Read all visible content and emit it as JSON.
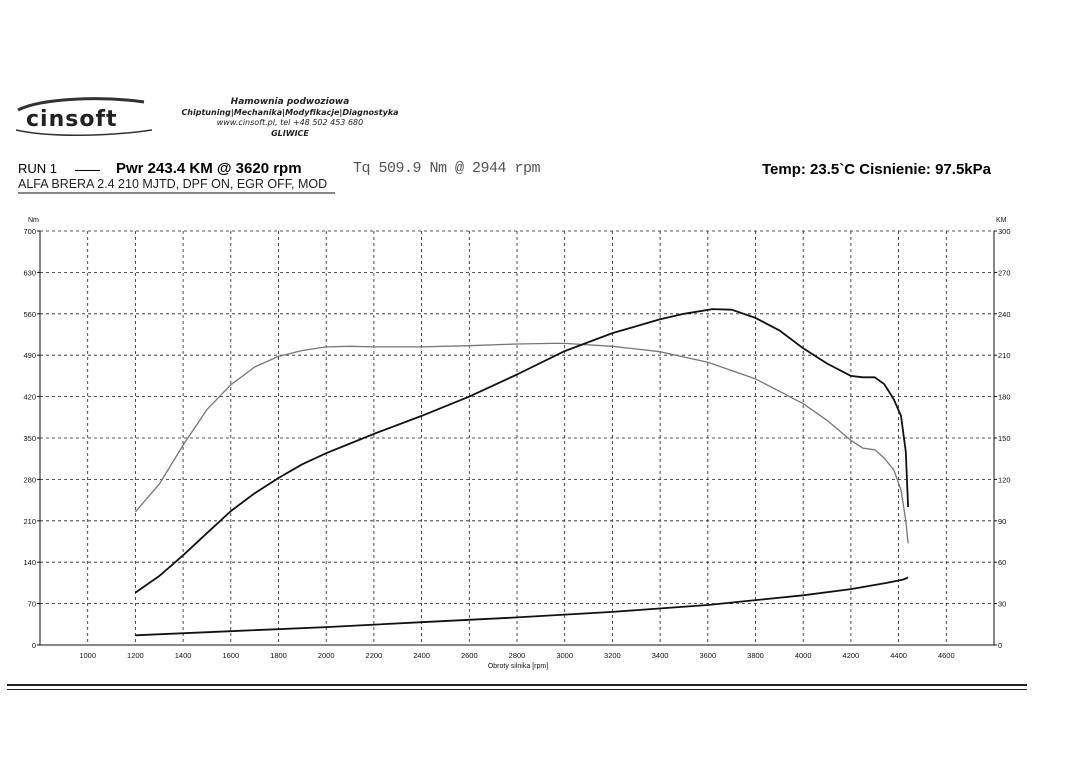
{
  "header": {
    "logo_text": "cinsoft",
    "company_line1": "Hamownia podwoziowa",
    "company_line2": "Chiptuning|Mechanika|Modyfikacje|Diagnostyka",
    "company_line3": "www.cinsoft.pl, tel +48 502 453 680",
    "company_line4": "GLIWICE",
    "run_label": "RUN 1",
    "power_summary": "Pwr  243.4 KM @ 3620 rpm",
    "torque_summary": "Tq 509.9 Nm @ 2944 rpm",
    "conditions": "Temp: 23.5`C  Cisnienie: 97.5kPa",
    "car_description": "ALFA BRERA 2.4 210 MJTD, DPF ON, EGR OFF, MOD"
  },
  "chart_data": {
    "type": "line",
    "xlabel": "Obroty silnika [rpm]",
    "ylabel_left": "Nm",
    "ylabel_right": "KM",
    "xlim": [
      800,
      4800
    ],
    "ylim_left": [
      0,
      700
    ],
    "ylim_right": [
      0,
      300
    ],
    "x_ticks": [
      1000,
      1200,
      1400,
      1600,
      1800,
      2000,
      2200,
      2400,
      2600,
      2800,
      3000,
      3200,
      3400,
      3600,
      3800,
      4000,
      4200,
      4400,
      4600
    ],
    "y_ticks_left": [
      0,
      70,
      140,
      210,
      280,
      350,
      420,
      490,
      560,
      630,
      700
    ],
    "y_ticks_right": [
      0,
      30,
      60,
      90,
      120,
      150,
      180,
      210,
      240,
      270,
      300
    ],
    "grid": true,
    "series": [
      {
        "axis": "left",
        "color": "#777777",
        "points": [
          [
            1200,
            225
          ],
          [
            1300,
            272
          ],
          [
            1400,
            338
          ],
          [
            1500,
            398
          ],
          [
            1600,
            440
          ],
          [
            1700,
            470
          ],
          [
            1800,
            488
          ],
          [
            1900,
            498
          ],
          [
            2000,
            504
          ],
          [
            2100,
            505
          ],
          [
            2200,
            504
          ],
          [
            2400,
            504
          ],
          [
            2600,
            506
          ],
          [
            2800,
            509
          ],
          [
            2944,
            510
          ],
          [
            3000,
            510
          ],
          [
            3200,
            505
          ],
          [
            3400,
            496
          ],
          [
            3600,
            478
          ],
          [
            3800,
            450
          ],
          [
            4000,
            408
          ],
          [
            4100,
            380
          ],
          [
            4200,
            346
          ],
          [
            4250,
            333
          ],
          [
            4300,
            330
          ],
          [
            4340,
            316
          ],
          [
            4380,
            296
          ],
          [
            4410,
            262
          ],
          [
            4430,
            210
          ],
          [
            4440,
            172
          ]
        ]
      },
      {
        "axis": "right",
        "color": "#111111",
        "points": [
          [
            1200,
            38
          ],
          [
            1300,
            50
          ],
          [
            1400,
            65
          ],
          [
            1500,
            81
          ],
          [
            1600,
            97
          ],
          [
            1700,
            110
          ],
          [
            1800,
            121
          ],
          [
            1900,
            131
          ],
          [
            2000,
            139
          ],
          [
            2100,
            146
          ],
          [
            2200,
            153
          ],
          [
            2400,
            166
          ],
          [
            2600,
            180
          ],
          [
            2800,
            196
          ],
          [
            3000,
            213
          ],
          [
            3200,
            226
          ],
          [
            3400,
            236
          ],
          [
            3500,
            240
          ],
          [
            3620,
            243.4
          ],
          [
            3700,
            243
          ],
          [
            3800,
            237
          ],
          [
            3900,
            228
          ],
          [
            4000,
            215
          ],
          [
            4100,
            204
          ],
          [
            4200,
            195
          ],
          [
            4250,
            194
          ],
          [
            4300,
            194
          ],
          [
            4340,
            189
          ],
          [
            4380,
            178
          ],
          [
            4410,
            166
          ],
          [
            4430,
            140
          ],
          [
            4440,
            100
          ]
        ]
      },
      {
        "axis": "right",
        "color": "#111111",
        "points": [
          [
            1200,
            7
          ],
          [
            1600,
            10
          ],
          [
            2000,
            13
          ],
          [
            2400,
            16.5
          ],
          [
            2800,
            20
          ],
          [
            3200,
            24
          ],
          [
            3600,
            29
          ],
          [
            4000,
            36
          ],
          [
            4200,
            40.5
          ],
          [
            4350,
            45
          ],
          [
            4420,
            47.5
          ],
          [
            4440,
            49
          ]
        ]
      }
    ]
  }
}
